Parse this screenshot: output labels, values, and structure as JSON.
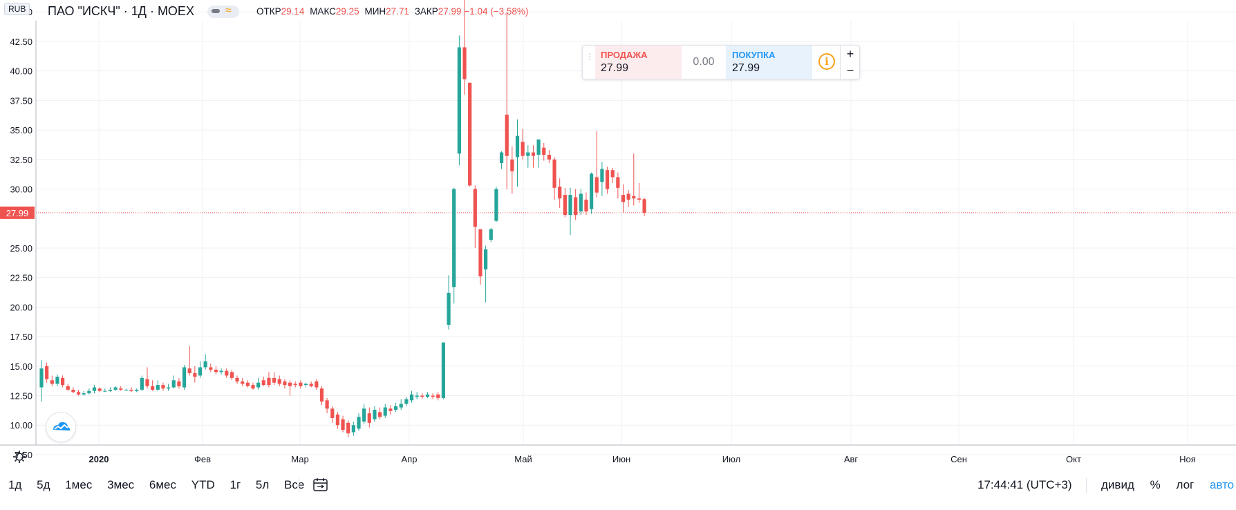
{
  "header": {
    "currency": "RUB",
    "symbol_title": "ПАО \"ИСКЧ\" · 1Д · MOEX",
    "ohlc": [
      {
        "label": "ОТКР",
        "value": "29.14"
      },
      {
        "label": "МАКС",
        "value": "29.25"
      },
      {
        "label": "МИН",
        "value": "27.71"
      },
      {
        "label": "ЗАКР",
        "value": "27.99 −1.04 (−3.58%)"
      }
    ]
  },
  "trade_panel": {
    "sell_label": "ПРОДАЖА",
    "sell_price": "27.99",
    "spread": "0.00",
    "buy_label": "ПОКУПКА",
    "buy_price": "27.99",
    "info_icon": "i",
    "plus": "+",
    "minus": "−"
  },
  "colors": {
    "up": "#26a69a",
    "down": "#ef5350",
    "grid": "#eef0f4",
    "price_line": "#ef5350",
    "accent": "#2196f3"
  },
  "chart_data": {
    "type": "candlestick",
    "ylim": [
      6.5,
      46.5
    ],
    "y_ticks": [
      "45.00",
      "42.50",
      "40.00",
      "37.50",
      "35.00",
      "32.50",
      "30.00",
      "25.00",
      "22.50",
      "20.00",
      "17.50",
      "15.00",
      "12.50",
      "10.00",
      "7.50"
    ],
    "x_ticks": [
      "2020",
      "Фев",
      "Мар",
      "Апр",
      "Май",
      "Июн",
      "Июл",
      "Авг",
      "Сен",
      "Окт",
      "Ноя"
    ],
    "last_price": "27.99",
    "candles": [
      [
        0,
        13.2,
        14.8,
        15.5,
        12.0
      ],
      [
        1,
        15.0,
        13.9,
        15.3,
        13.6
      ],
      [
        2,
        13.8,
        13.5,
        14.2,
        13.3
      ],
      [
        3,
        13.5,
        14.1,
        14.3,
        13.3
      ],
      [
        4,
        14.0,
        13.4,
        14.2,
        13.2
      ],
      [
        5,
        13.3,
        13.0,
        13.5,
        12.9
      ],
      [
        6,
        13.0,
        12.8,
        13.2,
        12.7
      ],
      [
        7,
        12.8,
        12.6,
        13.0,
        12.5
      ],
      [
        8,
        12.6,
        12.7,
        12.9,
        12.5
      ],
      [
        9,
        12.7,
        12.9,
        13.1,
        12.6
      ],
      [
        10,
        12.9,
        13.2,
        13.4,
        12.7
      ],
      [
        11,
        13.1,
        12.9,
        13.2,
        12.8
      ],
      [
        12,
        12.9,
        12.9,
        13.1,
        12.8
      ],
      [
        13,
        12.9,
        13.0,
        13.2,
        12.8
      ],
      [
        14,
        13.0,
        13.2,
        13.3,
        12.9
      ],
      [
        15,
        13.1,
        13.0,
        13.3,
        12.9
      ],
      [
        16,
        13.0,
        13.0,
        13.1,
        12.9
      ],
      [
        17,
        13.0,
        12.9,
        13.2,
        12.8
      ],
      [
        18,
        12.9,
        13.0,
        13.1,
        12.8
      ],
      [
        19,
        13.0,
        14.0,
        14.2,
        12.9
      ],
      [
        20,
        13.9,
        13.3,
        14.9,
        13.1
      ],
      [
        21,
        13.3,
        13.0,
        13.8,
        12.9
      ],
      [
        22,
        13.0,
        13.4,
        13.8,
        12.9
      ],
      [
        23,
        13.4,
        13.1,
        13.6,
        12.9
      ],
      [
        24,
        13.1,
        13.2,
        13.5,
        12.9
      ],
      [
        25,
        13.2,
        13.8,
        14.2,
        13.1
      ],
      [
        26,
        13.7,
        13.3,
        14.0,
        13.1
      ],
      [
        27,
        13.2,
        14.9,
        15.1,
        13.0
      ],
      [
        28,
        14.8,
        14.4,
        16.7,
        14.2
      ],
      [
        29,
        14.4,
        14.1,
        15.0,
        13.6
      ],
      [
        30,
        14.2,
        14.9,
        15.4,
        14.0
      ],
      [
        31,
        14.9,
        15.4,
        16.0,
        14.7
      ],
      [
        32,
        14.9,
        14.7,
        15.2,
        14.5
      ],
      [
        33,
        14.7,
        14.5,
        15.0,
        14.3
      ],
      [
        34,
        14.5,
        14.6,
        14.8,
        14.3
      ],
      [
        35,
        14.6,
        14.2,
        14.8,
        14.0
      ],
      [
        36,
        14.5,
        14.0,
        14.7,
        13.8
      ],
      [
        37,
        14.0,
        13.7,
        14.2,
        13.5
      ],
      [
        38,
        13.7,
        13.5,
        14.0,
        13.3
      ],
      [
        39,
        13.6,
        13.3,
        13.8,
        13.2
      ],
      [
        40,
        13.4,
        13.1,
        13.6,
        13.0
      ],
      [
        41,
        13.2,
        13.6,
        14.0,
        13.0
      ],
      [
        42,
        13.8,
        13.4,
        14.1,
        13.3
      ],
      [
        43,
        14.0,
        13.4,
        14.5,
        13.2
      ],
      [
        44,
        14.0,
        13.6,
        14.5,
        13.4
      ],
      [
        45,
        13.9,
        13.5,
        14.2,
        13.3
      ],
      [
        46,
        13.7,
        13.4,
        13.9,
        13.1
      ],
      [
        47,
        13.6,
        13.3,
        13.8,
        12.5
      ],
      [
        48,
        13.5,
        13.4,
        13.7,
        13.2
      ],
      [
        49,
        13.6,
        13.3,
        13.8,
        13.1
      ],
      [
        50,
        13.4,
        13.5,
        13.6,
        13.2
      ],
      [
        51,
        13.5,
        13.3,
        13.7,
        13.2
      ],
      [
        52,
        13.7,
        13.2,
        13.9,
        13.0
      ],
      [
        53,
        13.1,
        12.0,
        13.3,
        11.7
      ],
      [
        54,
        12.1,
        11.4,
        12.3,
        11.0
      ],
      [
        55,
        11.4,
        10.6,
        11.6,
        10.2
      ],
      [
        56,
        10.9,
        10.0,
        11.1,
        9.7
      ],
      [
        57,
        10.5,
        9.6,
        10.8,
        9.4
      ],
      [
        58,
        10.2,
        9.3,
        10.4,
        9.0
      ],
      [
        59,
        9.4,
        10.0,
        10.3,
        9.1
      ],
      [
        60,
        9.7,
        10.7,
        11.0,
        9.5
      ],
      [
        61,
        10.3,
        11.4,
        11.8,
        10.1
      ],
      [
        62,
        11.0,
        10.2,
        11.5,
        9.8
      ],
      [
        63,
        10.5,
        11.3,
        11.6,
        10.3
      ],
      [
        64,
        11.1,
        10.7,
        11.5,
        10.5
      ],
      [
        65,
        10.8,
        11.5,
        11.8,
        10.6
      ],
      [
        66,
        11.4,
        11.2,
        11.7,
        10.9
      ],
      [
        67,
        11.3,
        11.6,
        11.9,
        11.1
      ],
      [
        68,
        11.5,
        11.8,
        12.2,
        11.3
      ],
      [
        69,
        11.8,
        12.2,
        12.4,
        11.6
      ],
      [
        70,
        12.1,
        12.6,
        12.9,
        11.9
      ],
      [
        71,
        12.4,
        12.5,
        12.8,
        12.2
      ],
      [
        72,
        12.5,
        12.4,
        12.7,
        12.2
      ],
      [
        73,
        12.4,
        12.6,
        12.8,
        12.3
      ],
      [
        74,
        12.5,
        12.4,
        12.7,
        12.2
      ],
      [
        75,
        12.6,
        12.3,
        12.8,
        12.1
      ],
      [
        76,
        12.3,
        17.0,
        17.0,
        12.2
      ],
      [
        77,
        18.5,
        21.2,
        22.7,
        18.1
      ],
      [
        78,
        21.7,
        30.0,
        30.1,
        20.3
      ],
      [
        79,
        33.0,
        42.0,
        43.0,
        32.0
      ],
      [
        80,
        42.0,
        39.3,
        46.2,
        38.0
      ],
      [
        81,
        39.0,
        30.3,
        39.0,
        30.2
      ],
      [
        82,
        30.0,
        26.8,
        30.3,
        25.0
      ],
      [
        83,
        26.6,
        22.6,
        26.6,
        21.9
      ],
      [
        84,
        23.2,
        24.9,
        25.2,
        20.4
      ],
      [
        85,
        25.7,
        26.6,
        26.7,
        25.5
      ],
      [
        86,
        27.3,
        30.0,
        30.2,
        27.2
      ],
      [
        87,
        32.2,
        33.1,
        33.2,
        31.7
      ],
      [
        88,
        36.3,
        32.8,
        45.0,
        30.0
      ],
      [
        89,
        32.5,
        31.5,
        33.6,
        29.6
      ],
      [
        90,
        32.7,
        34.5,
        35.9,
        30.2
      ],
      [
        91,
        34.0,
        32.8,
        35.1,
        32.5
      ],
      [
        92,
        32.8,
        33.1,
        33.7,
        31.8
      ],
      [
        93,
        33.1,
        32.8,
        33.7,
        31.8
      ],
      [
        94,
        32.9,
        34.2,
        34.2,
        31.8
      ],
      [
        95,
        33.5,
        32.9,
        33.9,
        32.4
      ],
      [
        96,
        32.9,
        32.5,
        33.3,
        32.2
      ],
      [
        97,
        32.5,
        30.1,
        32.7,
        29.1
      ],
      [
        98,
        30.2,
        29.2,
        30.9,
        28.4
      ],
      [
        99,
        29.5,
        27.8,
        30.1,
        27.6
      ],
      [
        100,
        27.8,
        29.5,
        30.1,
        26.1
      ],
      [
        101,
        29.3,
        27.8,
        30.0,
        27.4
      ],
      [
        102,
        28.1,
        29.6,
        30.0,
        27.8
      ],
      [
        103,
        29.1,
        28.1,
        29.7,
        27.8
      ],
      [
        104,
        28.3,
        31.3,
        31.4,
        27.9
      ],
      [
        105,
        31.0,
        29.7,
        34.9,
        29.3
      ],
      [
        106,
        30.6,
        31.7,
        32.3,
        29.4
      ],
      [
        107,
        31.6,
        30.0,
        31.9,
        29.6
      ],
      [
        108,
        31.6,
        31.0,
        31.8,
        30.5
      ],
      [
        109,
        31.0,
        30.1,
        31.4,
        29.2
      ],
      [
        110,
        29.5,
        28.9,
        30.4,
        28.0
      ],
      [
        111,
        29.6,
        29.1,
        29.9,
        28.5
      ],
      [
        112,
        29.4,
        29.2,
        33.0,
        28.6
      ],
      [
        113,
        29.2,
        29.1,
        30.5,
        28.8
      ],
      [
        114,
        29.14,
        27.99,
        29.25,
        27.71
      ]
    ]
  },
  "bottom_bar": {
    "periods": [
      "1д",
      "5д",
      "1мес",
      "3мес",
      "6мес",
      "YTD",
      "1г",
      "5л",
      "Все"
    ],
    "clock": "17:44:41 (UTC+3)",
    "options": [
      "дивид",
      "%",
      "лог"
    ],
    "active_option": "авто"
  }
}
